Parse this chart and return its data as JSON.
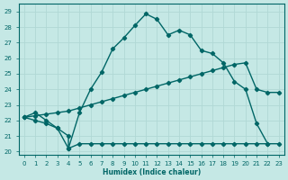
{
  "xlabel": "Humidex (Indice chaleur)",
  "xlim": [
    -0.5,
    23.5
  ],
  "ylim": [
    19.8,
    29.5
  ],
  "yticks": [
    20,
    21,
    22,
    23,
    24,
    25,
    26,
    27,
    28,
    29
  ],
  "xticks": [
    0,
    1,
    2,
    3,
    4,
    5,
    6,
    7,
    8,
    9,
    10,
    11,
    12,
    13,
    14,
    15,
    16,
    17,
    18,
    19,
    20,
    21,
    22,
    23
  ],
  "bg_color": "#c5e8e5",
  "grid_color": "#b0d8d5",
  "line_color": "#006666",
  "curve1_x": [
    0,
    1,
    2,
    3,
    4,
    4,
    5,
    6,
    7,
    8,
    9,
    10,
    11,
    12,
    13,
    14,
    15,
    16,
    17,
    18,
    19,
    20,
    21,
    22
  ],
  "curve1_y": [
    22.2,
    22.5,
    22.0,
    21.5,
    21.0,
    20.2,
    22.5,
    24.0,
    25.1,
    26.6,
    27.3,
    28.1,
    28.85,
    28.5,
    27.5,
    27.8,
    27.5,
    26.5,
    26.3,
    25.7,
    24.5,
    24.0,
    21.8,
    20.5
  ],
  "curve2_x": [
    0,
    1,
    2,
    3,
    4,
    5,
    6,
    7,
    8,
    9,
    10,
    11,
    12,
    13,
    14,
    15,
    16,
    17,
    18,
    19,
    20,
    21,
    22,
    23
  ],
  "curve2_y": [
    22.2,
    22.3,
    22.4,
    22.5,
    22.6,
    22.8,
    23.0,
    23.2,
    23.4,
    23.6,
    23.8,
    24.0,
    24.2,
    24.4,
    24.6,
    24.8,
    25.0,
    25.2,
    25.4,
    25.6,
    25.7,
    24.0,
    23.8,
    23.8
  ],
  "curve3_x": [
    0,
    1,
    2,
    3,
    4,
    5,
    6,
    7,
    8,
    9,
    10,
    11,
    12,
    13,
    14,
    15,
    16,
    17,
    18,
    19,
    20,
    21,
    22,
    23
  ],
  "curve3_y": [
    22.2,
    22.0,
    21.8,
    21.5,
    20.2,
    20.5,
    20.5,
    20.5,
    20.5,
    20.5,
    20.5,
    20.5,
    20.5,
    20.5,
    20.5,
    20.5,
    20.5,
    20.5,
    20.5,
    20.5,
    20.5,
    20.5,
    20.5,
    20.5
  ]
}
